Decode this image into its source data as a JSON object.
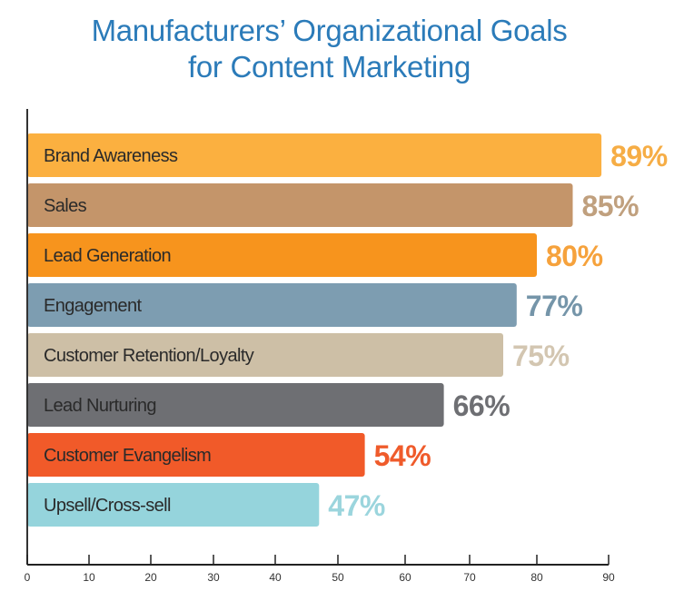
{
  "chart_data": {
    "type": "bar",
    "orientation": "horizontal",
    "title": "Manufacturers’ Organizational Goals for Content Marketing",
    "title_lines": [
      "Manufacturers’ Organizational Goals",
      "for Content Marketing"
    ],
    "title_color": "#2b7bb9",
    "categories": [
      "Brand Awareness",
      "Sales",
      "Lead Generation",
      "Engagement",
      "Customer Retention/Loyalty",
      "Lead Nurturing",
      "Customer Evangelism",
      "Upsell/Cross-sell"
    ],
    "values": [
      89,
      85,
      80,
      77,
      75,
      66,
      54,
      47
    ],
    "data_labels": [
      "89%",
      "85%",
      "80%",
      "77%",
      "75%",
      "66%",
      "54%",
      "47%"
    ],
    "colors": [
      "#fbb040",
      "#c4956a",
      "#f7941d",
      "#7d9db1",
      "#cdbfa6",
      "#6e6f73",
      "#f15a29",
      "#95d4dc"
    ],
    "label_colors": [
      "#f6ad45",
      "#c0a07e",
      "#f6a23c",
      "#7595a9",
      "#d3c6b1",
      "#6e6f73",
      "#ef5b2b",
      "#9bd5dd"
    ],
    "xlim": [
      0,
      90
    ],
    "xticks": [
      "0",
      "10",
      "20",
      "30",
      "40",
      "50",
      "60",
      "70",
      "80",
      "90"
    ],
    "grid": false,
    "legend": "none"
  }
}
